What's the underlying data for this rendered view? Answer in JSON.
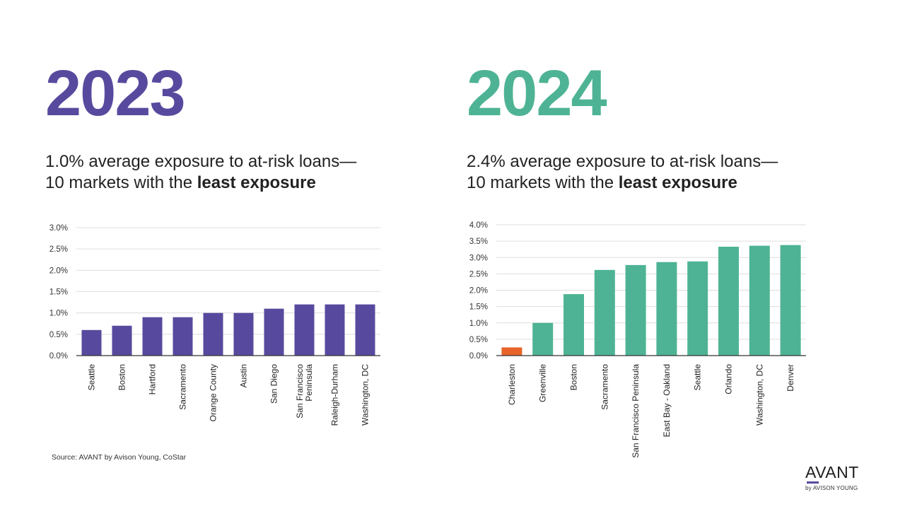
{
  "panels": [
    {
      "year": "2023",
      "subtitle_line1": "1.0% average exposure to at-risk loans—",
      "subtitle_line2_prefix": "10 markets with the ",
      "subtitle_line2_bold": "least exposure"
    },
    {
      "year": "2024",
      "subtitle_line1": "2.4% average exposure to at-risk loans—",
      "subtitle_line2_prefix": "10 markets with the ",
      "subtitle_line2_bold": "least exposure"
    }
  ],
  "source": "Source: AVANT by Avison Young, CoStar",
  "logo": {
    "word": "AVANT",
    "byline": "by AVISON YOUNG"
  },
  "colors": {
    "purple": "#574a9e",
    "green": "#4eb394",
    "orange": "#e8632a",
    "grid": "#dddddd",
    "axis": "#333333"
  },
  "chart_data": [
    {
      "type": "bar",
      "title": "2023",
      "categories": [
        "Seattle",
        "Boston",
        "Hartford",
        "Sacramento",
        "Orange County",
        "Austin",
        "San Diego",
        "San Francisco\nPeninsula",
        "Raleigh-Durham",
        "Washington, DC"
      ],
      "values": [
        0.6,
        0.7,
        0.9,
        0.9,
        1.0,
        1.0,
        1.1,
        1.2,
        1.2,
        1.2
      ],
      "ylim": [
        0,
        3.0
      ],
      "yticks": [
        0,
        0.5,
        1.0,
        1.5,
        2.0,
        2.5,
        3.0
      ],
      "ytick_labels": [
        "0.0%",
        "0.5%",
        "1.0%",
        "1.5%",
        "2.0%",
        "2.5%",
        "3.0%"
      ],
      "bar_color": "#574a9e",
      "highlight_index": -1,
      "xlabel": "",
      "ylabel": "",
      "grid": true
    },
    {
      "type": "bar",
      "title": "2024",
      "categories": [
        "Charleston",
        "Greenville",
        "Boston",
        "Sacramento",
        "San Francisco Peninsula",
        "East Bay - Oakland",
        "Seattle",
        "Orlando",
        "Washington, DC",
        "Denver"
      ],
      "values": [
        0.25,
        1.0,
        1.88,
        2.62,
        2.77,
        2.86,
        2.88,
        3.33,
        3.36,
        3.38
      ],
      "ylim": [
        0,
        4.0
      ],
      "yticks": [
        0,
        0.5,
        1.0,
        1.5,
        2.0,
        2.5,
        3.0,
        3.5,
        4.0
      ],
      "ytick_labels": [
        "0.0%",
        "0.5%",
        "1.0%",
        "1.5%",
        "2.0%",
        "2.5%",
        "3.0%",
        "3.5%",
        "4.0%"
      ],
      "bar_color": "#4eb394",
      "highlight_index": 0,
      "highlight_color": "#e8632a",
      "xlabel": "",
      "ylabel": "",
      "grid": true
    }
  ]
}
